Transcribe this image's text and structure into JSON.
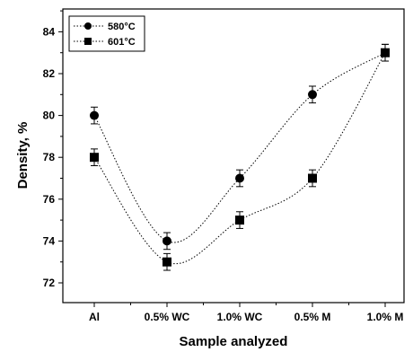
{
  "chart_data": {
    "type": "scatter",
    "title": "",
    "xlabel": "Sample analyzed",
    "ylabel": "Density, %",
    "categories": [
      "Al",
      "0.5% WC",
      "1.0% WC",
      "0.5% M",
      "1.0% M"
    ],
    "ylim": [
      71,
      85
    ],
    "yticks": [
      72,
      74,
      76,
      78,
      80,
      82,
      84
    ],
    "grid": false,
    "legend_position": "top-left",
    "series": [
      {
        "name": "580°C",
        "marker": "circle",
        "values": [
          80,
          74,
          77,
          81,
          83
        ],
        "error": [
          0.4,
          0.4,
          0.4,
          0.4,
          0.4
        ]
      },
      {
        "name": "601°C",
        "marker": "square",
        "values": [
          78,
          73,
          75,
          77,
          83
        ],
        "error": [
          0.4,
          0.4,
          0.4,
          0.4,
          0.4
        ]
      }
    ]
  }
}
